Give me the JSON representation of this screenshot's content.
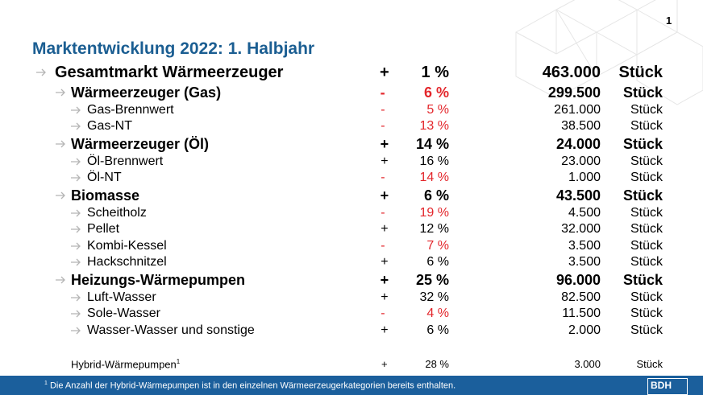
{
  "page_number": "1",
  "title": "Marktentwicklung 2022: 1. Halbjahr",
  "negative_color": "#e3262b",
  "table": {
    "total": {
      "label": "Gesamtmarkt Wärmeerzeuger",
      "sign": "+",
      "change": "1 %",
      "count": "463.000",
      "unit": "Stück"
    },
    "groups": [
      {
        "label": "Wärmeerzeuger (Gas)",
        "sign": "-",
        "change": "6 %",
        "count": "299.500",
        "unit": "Stück",
        "items": [
          {
            "label": "Gas-Brennwert",
            "sign": "-",
            "change": "5 %",
            "count": "261.000",
            "unit": "Stück"
          },
          {
            "label": "Gas-NT",
            "sign": "-",
            "change": "13 %",
            "count": "38.500",
            "unit": "Stück"
          }
        ]
      },
      {
        "label": "Wärmeerzeuger (Öl)",
        "sign": "+",
        "change": "14 %",
        "count": "24.000",
        "unit": "Stück",
        "items": [
          {
            "label": "Öl-Brennwert",
            "sign": "+",
            "change": "16 %",
            "count": "23.000",
            "unit": "Stück"
          },
          {
            "label": "Öl-NT",
            "sign": "-",
            "change": "14 %",
            "count": "1.000",
            "unit": "Stück"
          }
        ]
      },
      {
        "label": "Biomasse",
        "sign": "+",
        "change": "6 %",
        "count": "43.500",
        "unit": "Stück",
        "items": [
          {
            "label": "Scheitholz",
            "sign": "-",
            "change": "19 %",
            "count": "4.500",
            "unit": "Stück"
          },
          {
            "label": "Pellet",
            "sign": "+",
            "change": "12 %",
            "count": "32.000",
            "unit": "Stück"
          },
          {
            "label": "Kombi-Kessel",
            "sign": "-",
            "change": "7 %",
            "count": "3.500",
            "unit": "Stück"
          },
          {
            "label": "Hackschnitzel",
            "sign": "+",
            "change": "6 %",
            "count": "3.500",
            "unit": "Stück"
          }
        ]
      },
      {
        "label": "Heizungs-Wärmepumpen",
        "sign": "+",
        "change": "25 %",
        "count": "96.000",
        "unit": "Stück",
        "items": [
          {
            "label": "Luft-Wasser",
            "sign": "+",
            "change": "32 %",
            "count": "82.500",
            "unit": "Stück"
          },
          {
            "label": "Sole-Wasser",
            "sign": "-",
            "change": "4 %",
            "count": "11.500",
            "unit": "Stück"
          },
          {
            "label": "Wasser-Wasser und sonstige",
            "sign": "+",
            "change": "6 %",
            "count": "2.000",
            "unit": "Stück"
          }
        ]
      }
    ]
  },
  "hybrid": {
    "label": "Hybrid-Wärmepumpen",
    "note_marker": "1",
    "sign": "+",
    "change": "28 %",
    "count": "3.000",
    "unit": "Stück"
  },
  "footnote": {
    "marker": "1",
    "text": "Die Anzahl der Hybrid-Wärmepumpen ist in den einzelnen Wärmeerzeugerkategorien bereits enthalten."
  },
  "logo": "BDH"
}
